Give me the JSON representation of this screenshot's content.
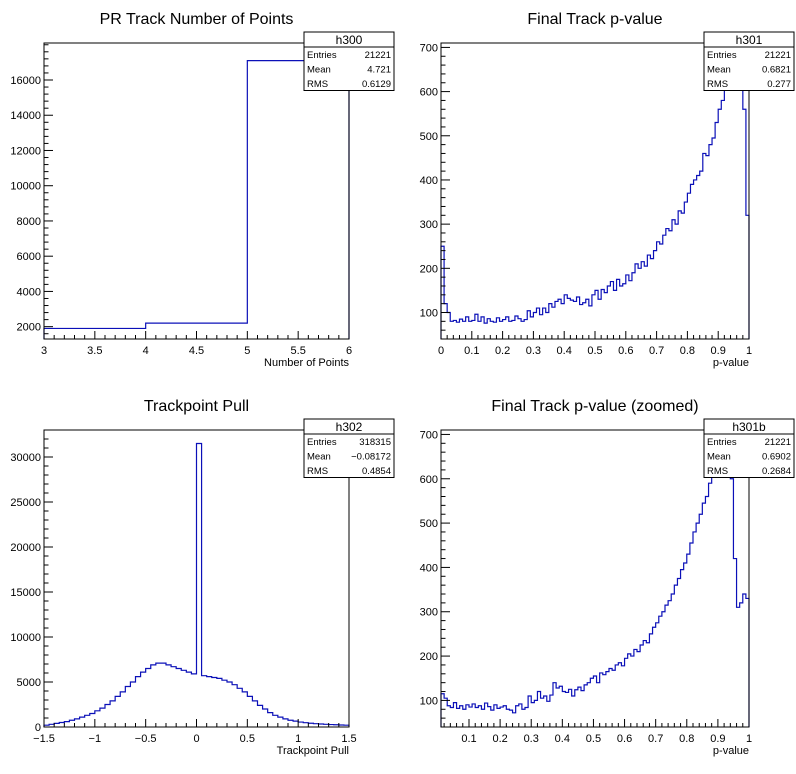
{
  "chart_data": [
    {
      "type": "histogram",
      "title": "PR Track Number of Points",
      "xlabel": "Number of Points",
      "ylabel": "",
      "xlim": [
        3,
        6
      ],
      "ylim": [
        1300,
        18100
      ],
      "xticks": [
        3,
        3.5,
        4,
        4.5,
        5,
        5.5,
        6
      ],
      "xtick_labels": [
        "3",
        "3.5",
        "4",
        "4.5",
        "5",
        "5.5",
        "6"
      ],
      "yticks": [
        2000,
        4000,
        6000,
        8000,
        10000,
        12000,
        14000,
        16000
      ],
      "ytick_labels": [
        "2000",
        "4000",
        "6000",
        "8000",
        "10000",
        "12000",
        "14000",
        "16000"
      ],
      "bin_edges": [
        3,
        4,
        5,
        6
      ],
      "counts": [
        1900,
        2200,
        17100
      ],
      "stats": {
        "name": "h300",
        "rows": [
          [
            "Entries",
            "21221"
          ],
          [
            "Mean",
            "4.721"
          ],
          [
            "RMS",
            "0.6129"
          ]
        ]
      }
    },
    {
      "type": "histogram",
      "title": "Final Track p-value",
      "xlabel": "p-value",
      "ylabel": "",
      "xlim": [
        0,
        1
      ],
      "ylim": [
        40,
        710
      ],
      "xticks": [
        0,
        0.1,
        0.2,
        0.3,
        0.4,
        0.5,
        0.6,
        0.7,
        0.8,
        0.9,
        1
      ],
      "xtick_labels": [
        "0",
        "0.1",
        "0.2",
        "0.3",
        "0.4",
        "0.5",
        "0.6",
        "0.7",
        "0.8",
        "0.9",
        "1"
      ],
      "yticks": [
        100,
        200,
        300,
        400,
        500,
        600,
        700
      ],
      "ytick_labels": [
        "100",
        "200",
        "300",
        "400",
        "500",
        "600",
        "700"
      ],
      "bin_edges": [
        0,
        0.01,
        0.02,
        0.03,
        0.04,
        0.05,
        0.06,
        0.07,
        0.08,
        0.09,
        0.1,
        0.11,
        0.12,
        0.13,
        0.14,
        0.15,
        0.16,
        0.17,
        0.18,
        0.19,
        0.2,
        0.21,
        0.22,
        0.23,
        0.24,
        0.25,
        0.26,
        0.27,
        0.28,
        0.29,
        0.3,
        0.31,
        0.32,
        0.33,
        0.34,
        0.35,
        0.36,
        0.37,
        0.38,
        0.39,
        0.4,
        0.41,
        0.42,
        0.43,
        0.44,
        0.45,
        0.46,
        0.47,
        0.48,
        0.49,
        0.5,
        0.51,
        0.52,
        0.53,
        0.54,
        0.55,
        0.56,
        0.57,
        0.58,
        0.59,
        0.6,
        0.61,
        0.62,
        0.63,
        0.64,
        0.65,
        0.66,
        0.67,
        0.68,
        0.69,
        0.7,
        0.71,
        0.72,
        0.73,
        0.74,
        0.75,
        0.76,
        0.77,
        0.78,
        0.79,
        0.8,
        0.81,
        0.82,
        0.83,
        0.84,
        0.85,
        0.86,
        0.87,
        0.88,
        0.89,
        0.9,
        0.91,
        0.92,
        0.93,
        0.94,
        0.95,
        0.96,
        0.97,
        0.98,
        0.99,
        1
      ],
      "counts": [
        250,
        120,
        100,
        80,
        82,
        78,
        85,
        80,
        90,
        80,
        82,
        96,
        80,
        90,
        76,
        86,
        80,
        78,
        88,
        80,
        84,
        90,
        80,
        82,
        92,
        86,
        80,
        84,
        104,
        90,
        100,
        110,
        95,
        110,
        100,
        120,
        112,
        125,
        130,
        120,
        140,
        132,
        128,
        125,
        135,
        118,
        122,
        130,
        115,
        140,
        150,
        130,
        152,
        145,
        160,
        170,
        150,
        175,
        160,
        165,
        185,
        172,
        190,
        210,
        200,
        215,
        205,
        230,
        222,
        240,
        260,
        255,
        275,
        290,
        285,
        310,
        300,
        330,
        325,
        350,
        370,
        390,
        400,
        410,
        420,
        460,
        455,
        480,
        495,
        530,
        560,
        580,
        605,
        640,
        660,
        710,
        740,
        650,
        560,
        320
      ],
      "stats": {
        "name": "h301",
        "rows": [
          [
            "Entries",
            "21221"
          ],
          [
            "Mean",
            "0.6821"
          ],
          [
            "RMS",
            "0.277"
          ]
        ]
      }
    },
    {
      "type": "histogram",
      "title": "Trackpoint Pull",
      "xlabel": "Trackpoint Pull",
      "ylabel": "",
      "xlim": [
        -1.5,
        1.5
      ],
      "ylim": [
        0,
        33000
      ],
      "xticks": [
        -1.5,
        -1,
        -0.5,
        0,
        0.5,
        1,
        1.5
      ],
      "xtick_labels": [
        "−1.5",
        "−1",
        "−0.5",
        "0",
        "0.5",
        "1",
        "1.5"
      ],
      "yticks": [
        0,
        5000,
        10000,
        15000,
        20000,
        25000,
        30000
      ],
      "ytick_labels": [
        "0",
        "5000",
        "10000",
        "15000",
        "20000",
        "25000",
        "30000"
      ],
      "bin_edges": [
        -1.5,
        -1.45,
        -1.4,
        -1.35,
        -1.3,
        -1.25,
        -1.2,
        -1.15,
        -1.1,
        -1.05,
        -1,
        -0.95,
        -0.9,
        -0.85,
        -0.8,
        -0.75,
        -0.7,
        -0.65,
        -0.6,
        -0.55,
        -0.5,
        -0.45,
        -0.4,
        -0.35,
        -0.3,
        -0.25,
        -0.2,
        -0.15,
        -0.1,
        -0.05,
        0,
        0.05,
        0.1,
        0.15,
        0.2,
        0.25,
        0.3,
        0.35,
        0.4,
        0.45,
        0.5,
        0.55,
        0.6,
        0.65,
        0.7,
        0.75,
        0.8,
        0.85,
        0.9,
        0.95,
        1,
        1.05,
        1.1,
        1.15,
        1.2,
        1.25,
        1.3,
        1.35,
        1.4,
        1.45,
        1.5
      ],
      "counts": [
        200,
        300,
        400,
        500,
        600,
        750,
        900,
        1100,
        1300,
        1500,
        1800,
        2100,
        2500,
        2900,
        3400,
        3900,
        4500,
        5000,
        5600,
        6100,
        6500,
        6900,
        7100,
        7100,
        6900,
        6700,
        6500,
        6300,
        6100,
        5900,
        31500,
        5700,
        5600,
        5500,
        5400,
        5200,
        5000,
        4700,
        4300,
        3900,
        3400,
        2900,
        2400,
        2000,
        1600,
        1300,
        1100,
        900,
        750,
        650,
        550,
        480,
        420,
        370,
        330,
        300,
        270,
        250,
        220,
        200
      ],
      "stats": {
        "name": "h302",
        "rows": [
          [
            "Entries",
            "318315"
          ],
          [
            "Mean",
            "−0.08172"
          ],
          [
            "RMS",
            "0.4854"
          ]
        ]
      }
    },
    {
      "type": "histogram",
      "title": "Final Track p-value (zoomed)",
      "xlabel": "p-value",
      "ylabel": "",
      "xlim": [
        0.01,
        1
      ],
      "ylim": [
        40,
        710
      ],
      "xticks": [
        0.1,
        0.2,
        0.3,
        0.4,
        0.5,
        0.6,
        0.7,
        0.8,
        0.9,
        1
      ],
      "xtick_labels": [
        "0.1",
        "0.2",
        "0.3",
        "0.4",
        "0.5",
        "0.6",
        "0.7",
        "0.8",
        "0.9",
        "1"
      ],
      "yticks": [
        100,
        200,
        300,
        400,
        500,
        600,
        700
      ],
      "ytick_labels": [
        "100",
        "200",
        "300",
        "400",
        "500",
        "600",
        "700"
      ],
      "bin_edges": [
        0.01,
        0.02,
        0.03,
        0.04,
        0.05,
        0.06,
        0.07,
        0.08,
        0.09,
        0.1,
        0.11,
        0.12,
        0.13,
        0.14,
        0.15,
        0.16,
        0.17,
        0.18,
        0.19,
        0.2,
        0.21,
        0.22,
        0.23,
        0.24,
        0.25,
        0.26,
        0.27,
        0.28,
        0.29,
        0.3,
        0.31,
        0.32,
        0.33,
        0.34,
        0.35,
        0.36,
        0.37,
        0.38,
        0.39,
        0.4,
        0.41,
        0.42,
        0.43,
        0.44,
        0.45,
        0.46,
        0.47,
        0.48,
        0.49,
        0.5,
        0.51,
        0.52,
        0.53,
        0.54,
        0.55,
        0.56,
        0.57,
        0.58,
        0.59,
        0.6,
        0.61,
        0.62,
        0.63,
        0.64,
        0.65,
        0.66,
        0.67,
        0.68,
        0.69,
        0.7,
        0.71,
        0.72,
        0.73,
        0.74,
        0.75,
        0.76,
        0.77,
        0.78,
        0.79,
        0.8,
        0.81,
        0.82,
        0.83,
        0.84,
        0.85,
        0.86,
        0.87,
        0.88,
        0.89,
        0.9,
        0.91,
        0.92,
        0.93,
        0.94,
        0.95,
        0.96,
        0.97,
        0.98,
        0.99,
        1
      ],
      "counts": [
        115,
        105,
        88,
        84,
        95,
        82,
        88,
        80,
        90,
        85,
        92,
        84,
        88,
        80,
        94,
        86,
        78,
        90,
        82,
        85,
        88,
        80,
        78,
        72,
        88,
        92,
        80,
        84,
        110,
        95,
        100,
        120,
        105,
        110,
        98,
        112,
        140,
        128,
        132,
        120,
        118,
        125,
        110,
        124,
        130,
        122,
        135,
        140,
        150,
        155,
        140,
        162,
        158,
        165,
        172,
        168,
        180,
        185,
        178,
        195,
        205,
        200,
        215,
        210,
        225,
        235,
        230,
        250,
        265,
        275,
        290,
        300,
        315,
        325,
        340,
        360,
        375,
        395,
        410,
        430,
        455,
        480,
        500,
        520,
        545,
        560,
        590,
        610,
        640,
        660,
        690,
        720,
        660,
        600,
        420,
        310,
        320,
        340,
        330
      ],
      "stats": {
        "name": "h301b",
        "rows": [
          [
            "Entries",
            "21221"
          ],
          [
            "Mean",
            "0.6902"
          ],
          [
            "RMS",
            "0.2684"
          ]
        ]
      }
    }
  ],
  "style": {
    "line_color": "#0b10b8",
    "axis_color": "#000000",
    "background": "#ffffff"
  }
}
